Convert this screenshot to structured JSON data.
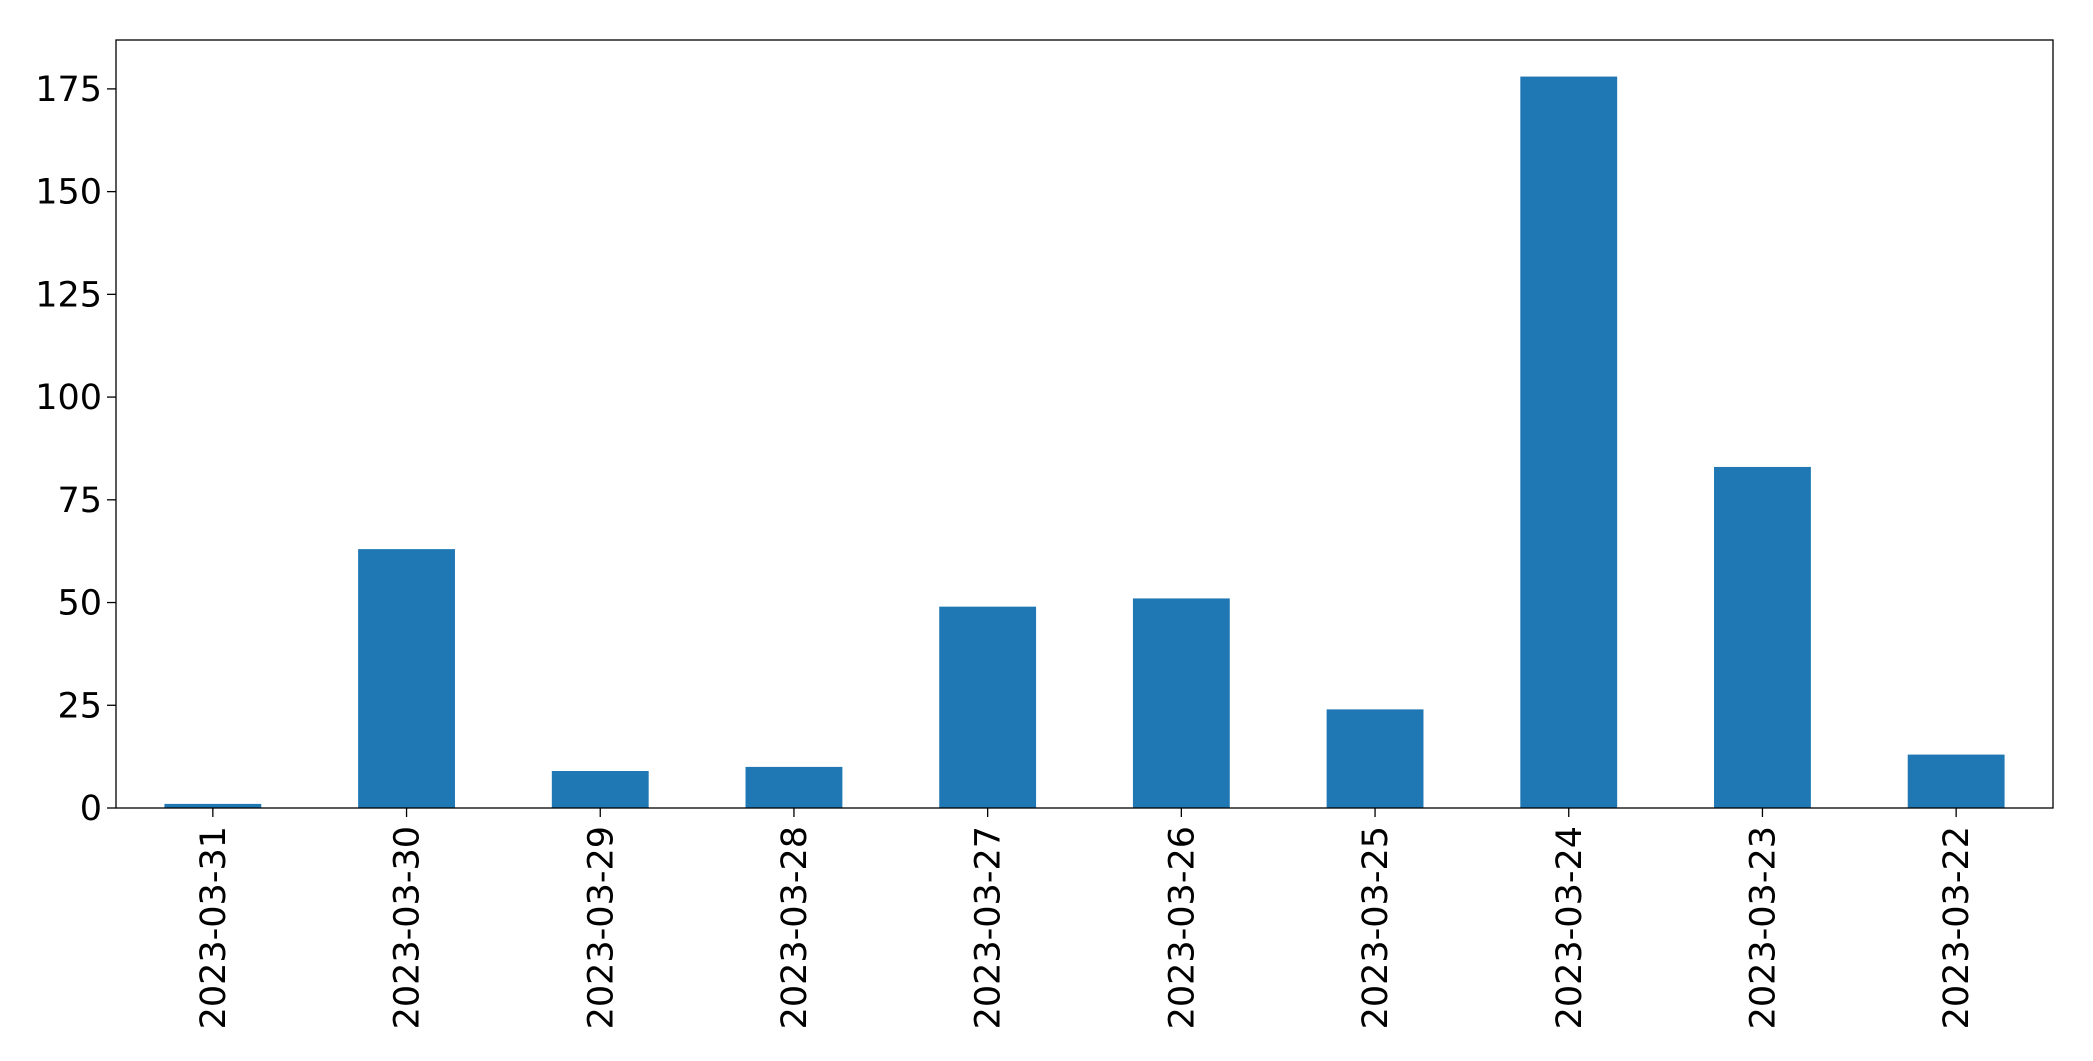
{
  "chart_data": {
    "type": "bar",
    "categories": [
      "2023-03-31",
      "2023-03-30",
      "2023-03-29",
      "2023-03-28",
      "2023-03-27",
      "2023-03-26",
      "2023-03-25",
      "2023-03-24",
      "2023-03-23",
      "2023-03-22"
    ],
    "values": [
      1,
      63,
      9,
      10,
      49,
      51,
      24,
      178,
      83,
      13
    ],
    "color": "#1f77b4",
    "ylim": [
      0,
      186.9
    ],
    "yticks": [
      0,
      25,
      50,
      75,
      100,
      125,
      150,
      175
    ],
    "grid": false
  }
}
